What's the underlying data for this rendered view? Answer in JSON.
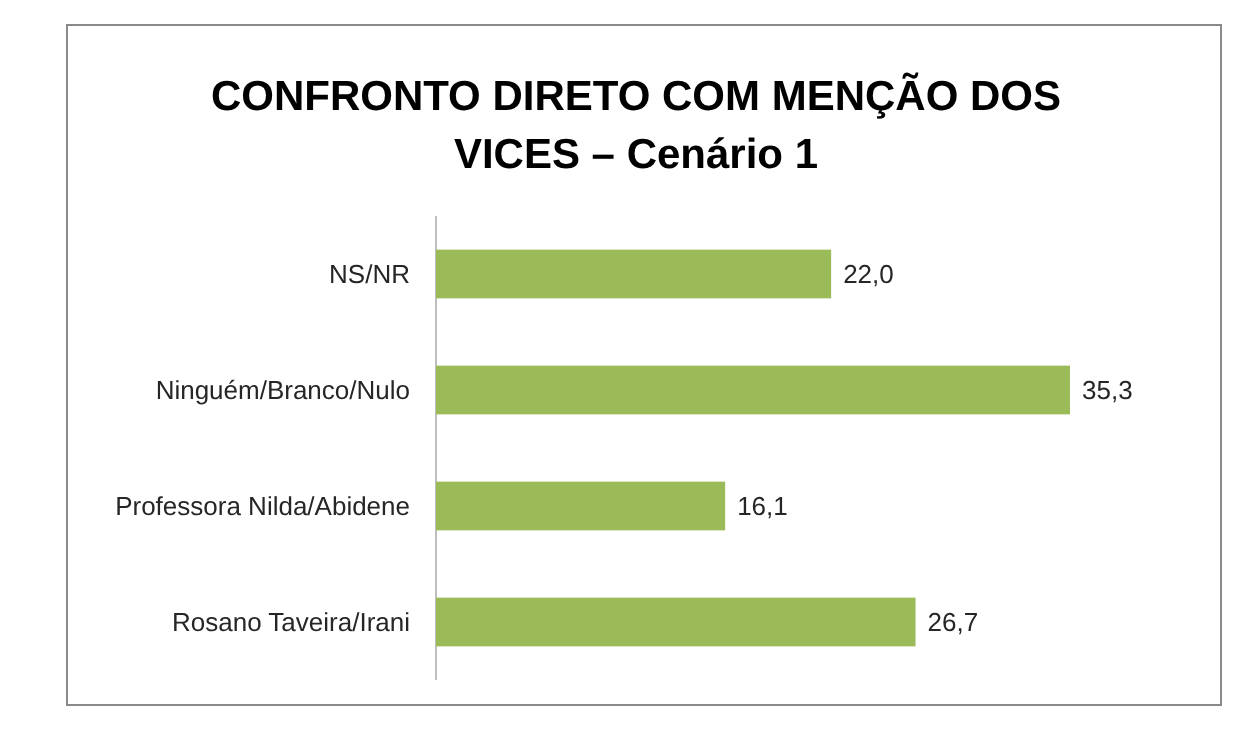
{
  "chart_data": {
    "type": "bar",
    "orientation": "horizontal",
    "title": "CONFRONTO DIRETO COM MENÇÃO DOS VICES – Cenário 1",
    "categories": [
      "NS/NR",
      "Ninguém/Branco/Nulo",
      "Professora Nilda/Abidene",
      "Rosano Taveira/Irani"
    ],
    "values": [
      22.0,
      35.3,
      16.1,
      26.7
    ],
    "value_labels": [
      "22,0",
      "35,3",
      "16,1",
      "26,7"
    ],
    "color": "#9bbb59"
  }
}
